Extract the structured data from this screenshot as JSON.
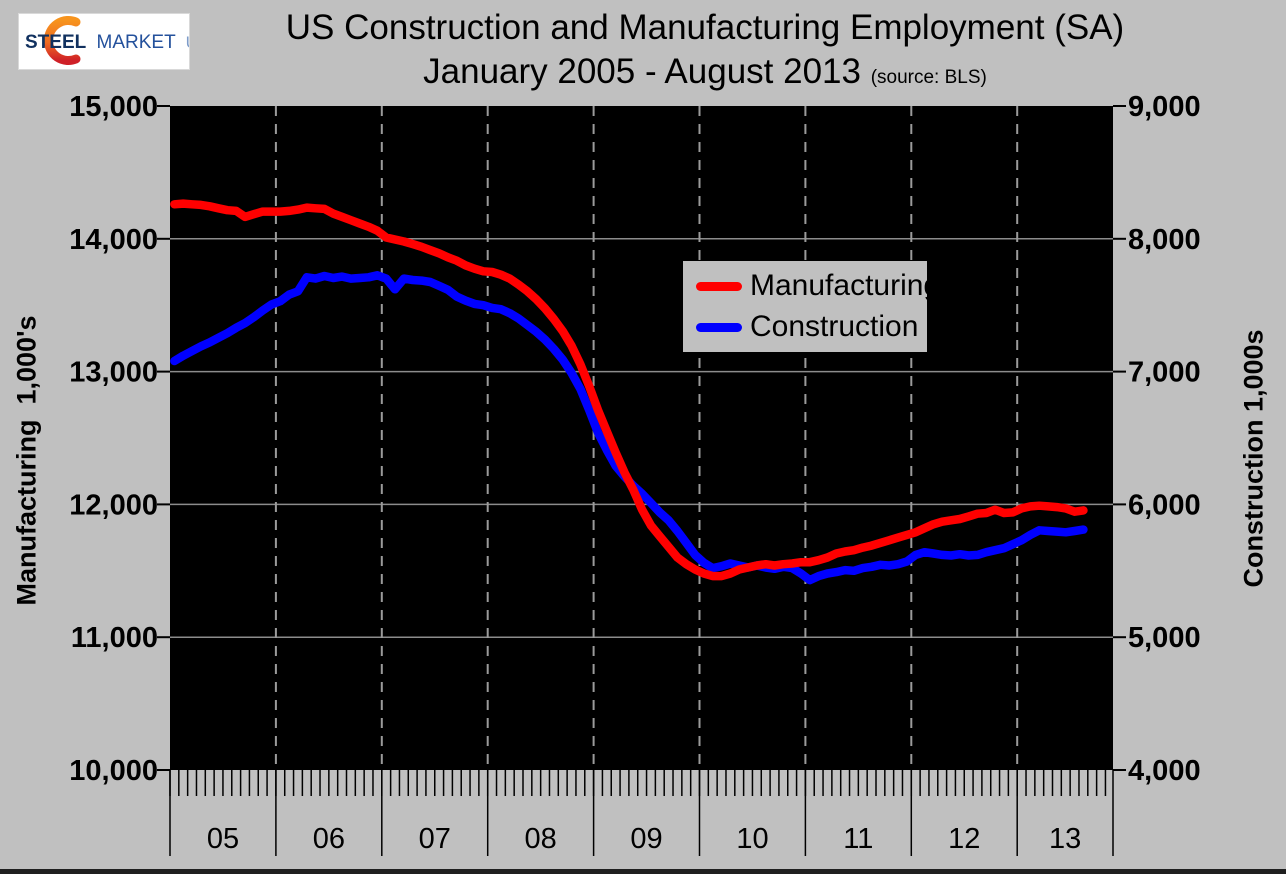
{
  "page": {
    "background": "#c0c0c0"
  },
  "logo": {
    "text_steel": "STEEL",
    "text_market": "MARKET",
    "text_update": "UPDATE",
    "steel_color": "#11315f",
    "market_color": "#24519c",
    "update_color": "#7e9cc9",
    "swoosh_top_color": "#f7941e",
    "swoosh_bottom_color": "#cf2027"
  },
  "title": {
    "line1": "US Construction and Manufacturing Employment (SA)",
    "line2": "January 2005 - August 2013",
    "source_note": "(source: BLS)"
  },
  "chart_data": {
    "type": "line",
    "frequency": "monthly",
    "x_start": "2005-01",
    "x_end": "2013-08",
    "x_year_labels": [
      "05",
      "06",
      "07",
      "08",
      "09",
      "10",
      "11",
      "12",
      "13"
    ],
    "plot_background": "#000000",
    "grid": {
      "horizontal": "solid",
      "vertical": "dashed",
      "grid_color": "#8c8c8c"
    },
    "legend": {
      "position": "upper-middle",
      "background": "#c0c0c0"
    },
    "left_axis": {
      "title": "Manufacturing  1,000's",
      "min": 10000,
      "max": 15000,
      "tick_step": 1000,
      "tick_labels": [
        "10,000",
        "11,000",
        "12,000",
        "13,000",
        "14,000",
        "15,000"
      ]
    },
    "right_axis": {
      "title": "Construction 1,000s",
      "min": 4000,
      "max": 9000,
      "tick_step": 1000,
      "tick_labels": [
        "4,000",
        "5,000",
        "6,000",
        "7,000",
        "8,000",
        "9,000"
      ]
    },
    "series": [
      {
        "name": "Manufacturing",
        "color": "#ff0000",
        "axis": "left",
        "values": [
          14260,
          14265,
          14260,
          14255,
          14245,
          14230,
          14215,
          14210,
          14165,
          14185,
          14205,
          14205,
          14205,
          14210,
          14220,
          14235,
          14230,
          14225,
          14190,
          14165,
          14140,
          14115,
          14090,
          14060,
          14010,
          13995,
          13980,
          13960,
          13940,
          13915,
          13890,
          13860,
          13835,
          13800,
          13775,
          13755,
          13750,
          13730,
          13700,
          13655,
          13605,
          13545,
          13475,
          13395,
          13305,
          13195,
          13055,
          12890,
          12710,
          12550,
          12390,
          12240,
          12110,
          11960,
          11840,
          11760,
          11680,
          11600,
          11550,
          11510,
          11480,
          11460,
          11460,
          11480,
          11510,
          11525,
          11540,
          11550,
          11540,
          11550,
          11555,
          11565,
          11565,
          11580,
          11600,
          11630,
          11645,
          11655,
          11675,
          11690,
          11710,
          11730,
          11750,
          11770,
          11790,
          11820,
          11850,
          11870,
          11880,
          11890,
          11910,
          11930,
          11935,
          11960,
          11935,
          11940,
          11970,
          11985,
          11990,
          11985,
          11980,
          11970,
          11945,
          11955
        ]
      },
      {
        "name": "Construction",
        "color": "#0000ff",
        "axis": "right",
        "values": [
          7080,
          7120,
          7155,
          7190,
          7220,
          7255,
          7290,
          7330,
          7365,
          7410,
          7460,
          7505,
          7530,
          7580,
          7605,
          7710,
          7700,
          7720,
          7705,
          7715,
          7700,
          7705,
          7710,
          7725,
          7700,
          7620,
          7700,
          7690,
          7685,
          7675,
          7645,
          7615,
          7565,
          7535,
          7510,
          7500,
          7480,
          7470,
          7440,
          7400,
          7350,
          7300,
          7240,
          7170,
          7090,
          6990,
          6870,
          6710,
          6540,
          6410,
          6290,
          6210,
          6140,
          6080,
          6010,
          5940,
          5880,
          5800,
          5710,
          5620,
          5560,
          5520,
          5535,
          5555,
          5540,
          5525,
          5540,
          5525,
          5515,
          5530,
          5520,
          5480,
          5430,
          5460,
          5480,
          5490,
          5505,
          5500,
          5520,
          5530,
          5545,
          5540,
          5550,
          5570,
          5620,
          5640,
          5630,
          5620,
          5615,
          5625,
          5615,
          5620,
          5640,
          5655,
          5670,
          5700,
          5730,
          5770,
          5805,
          5800,
          5795,
          5790,
          5800,
          5810
        ]
      }
    ]
  }
}
